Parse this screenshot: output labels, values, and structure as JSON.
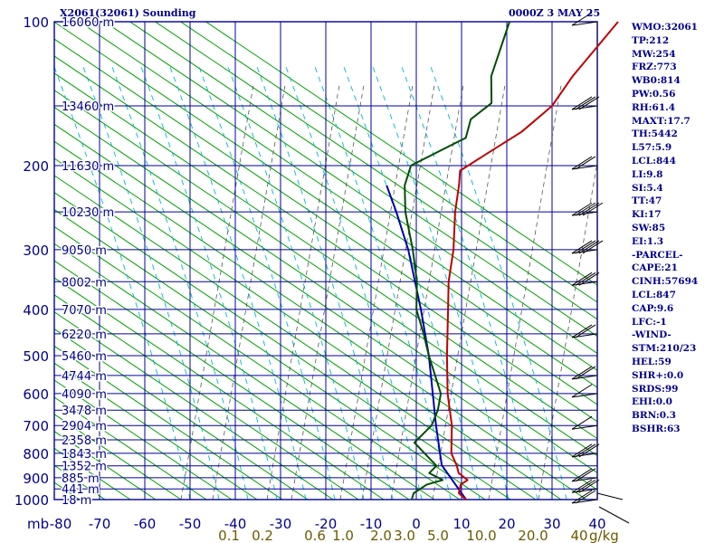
{
  "header": {
    "title": "X2061(32061) Sounding",
    "datetime": "0000Z  3 MAY 25"
  },
  "indices": [
    "WMO:32061",
    "TP:212",
    "MW:254",
    "FRZ:773",
    "WB0:814",
    "PW:0.56",
    "RH:61.4",
    "MAXT:17.7",
    "TH:5442",
    "L57:5.9",
    "LCL:844",
    "LI:9.8",
    "SI:5.4",
    "TT:47",
    "KI:17",
    "SW:85",
    "EI:1.3",
    "-PARCEL-",
    "CAPE:21",
    "CINH:57694",
    "LCL:847",
    "CAP:9.6",
    "LFC:-1",
    "-WIND-",
    "STM:210/23",
    "HEL:59",
    "SHR+:0.0",
    "SRDS:99",
    "EHI:0.0",
    "BRN:0.3",
    "BSHR:63"
  ],
  "colors": {
    "grid": "#0000a0",
    "temperature": "#c00000",
    "dewpoint": "#004d00",
    "parcel": "#0000b0",
    "dry_adiabat": "#00a000",
    "moist_adiabat": "#00b8c8",
    "mixing_ratio": "#555555",
    "text": "#00008b",
    "mixing_label": "#6b5a00",
    "wind": "#000000"
  },
  "chart_data": {
    "type": "skew-t",
    "xlabel": "mb",
    "pressure_ticks": [
      "100",
      "200",
      "300",
      "400",
      "500",
      "600",
      "700",
      "800",
      "900",
      "1000"
    ],
    "temperature_ticks": [
      "-80",
      "-70",
      "-60",
      "-50",
      "-40",
      "-30",
      "-20",
      "-10",
      "0",
      "10",
      "20",
      "30",
      "40"
    ],
    "xlim": [
      -80,
      40
    ],
    "ylim": [
      1000,
      100
    ],
    "height_labels": [
      {
        "p": 100,
        "text": "16060 m"
      },
      {
        "p": 150,
        "text": "13460 m"
      },
      {
        "p": 200,
        "text": "11630 m"
      },
      {
        "p": 250,
        "text": "10230 m"
      },
      {
        "p": 300,
        "text": "9050 m"
      },
      {
        "p": 350,
        "text": "8002 m"
      },
      {
        "p": 400,
        "text": "7070 m"
      },
      {
        "p": 450,
        "text": "6220 m"
      },
      {
        "p": 500,
        "text": "5460 m"
      },
      {
        "p": 550,
        "text": "4744 m"
      },
      {
        "p": 600,
        "text": "4090 m"
      },
      {
        "p": 650,
        "text": "3478 m"
      },
      {
        "p": 700,
        "text": "2904 m"
      },
      {
        "p": 750,
        "text": "2358 m"
      },
      {
        "p": 800,
        "text": "1843 m"
      },
      {
        "p": 850,
        "text": "1352 m"
      },
      {
        "p": 900,
        "text": "885 m"
      },
      {
        "p": 950,
        "text": "441 m"
      },
      {
        "p": 1000,
        "text": "18 m"
      }
    ],
    "mixing_ratio_labels": [
      {
        "w": 0.1,
        "text": "0.1"
      },
      {
        "w": 0.2,
        "text": "0.2"
      },
      {
        "w": 0.6,
        "text": "0.6"
      },
      {
        "w": 1.0,
        "text": "1.0"
      },
      {
        "w": 2.0,
        "text": "2.0"
      },
      {
        "w": 3.0,
        "text": "3.0"
      },
      {
        "w": 5.0,
        "text": "5.0"
      },
      {
        "w": 10.0,
        "text": "10.0"
      },
      {
        "w": 20.0,
        "text": "20.0"
      },
      {
        "w": 40.0,
        "text": "40"
      }
    ],
    "mixing_ratio_unit": "g/kg",
    "temperature": [
      {
        "p": 1000,
        "t": 11.0
      },
      {
        "p": 970,
        "t": 8.0
      },
      {
        "p": 930,
        "t": 6.5
      },
      {
        "p": 910,
        "t": 7.0
      },
      {
        "p": 880,
        "t": 3.5
      },
      {
        "p": 850,
        "t": 1.5
      },
      {
        "p": 800,
        "t": -2.5
      },
      {
        "p": 700,
        "t": -8.5
      },
      {
        "p": 600,
        "t": -16.5
      },
      {
        "p": 500,
        "t": -25.0
      },
      {
        "p": 400,
        "t": -35.0
      },
      {
        "p": 350,
        "t": -41.0
      },
      {
        "p": 300,
        "t": -47.0
      },
      {
        "p": 250,
        "t": -55.0
      },
      {
        "p": 220,
        "t": -60.0
      },
      {
        "p": 205,
        "t": -63.0
      },
      {
        "p": 190,
        "t": -61.0
      },
      {
        "p": 170,
        "t": -58.0
      },
      {
        "p": 160,
        "t": -57.5
      },
      {
        "p": 150,
        "t": -57.0
      },
      {
        "p": 130,
        "t": -59.0
      },
      {
        "p": 100,
        "t": -61.0
      }
    ],
    "dewpoint": [
      {
        "p": 1000,
        "t": -1.0
      },
      {
        "p": 970,
        "t": -2.0
      },
      {
        "p": 930,
        "t": -1.0
      },
      {
        "p": 910,
        "t": 1.5
      },
      {
        "p": 880,
        "t": -3.0
      },
      {
        "p": 850,
        "t": -3.0
      },
      {
        "p": 760,
        "t": -13.0
      },
      {
        "p": 700,
        "t": -13.0
      },
      {
        "p": 650,
        "t": -15.0
      },
      {
        "p": 600,
        "t": -18.0
      },
      {
        "p": 500,
        "t": -29.0
      },
      {
        "p": 450,
        "t": -35.0
      },
      {
        "p": 400,
        "t": -42.0
      },
      {
        "p": 350,
        "t": -48.0
      },
      {
        "p": 300,
        "t": -56.0
      },
      {
        "p": 250,
        "t": -66.0
      },
      {
        "p": 220,
        "t": -72.0
      },
      {
        "p": 200,
        "t": -75.0
      },
      {
        "p": 175,
        "t": -69.0
      },
      {
        "p": 160,
        "t": -72.0
      },
      {
        "p": 148,
        "t": -71.0
      },
      {
        "p": 130,
        "t": -77.0
      },
      {
        "p": 100,
        "t": -85.0
      }
    ],
    "parcel": [
      {
        "p": 1000,
        "t": 11.0
      },
      {
        "p": 847,
        "t": -2.0
      },
      {
        "p": 700,
        "t": -12.0
      },
      {
        "p": 500,
        "t": -29.0
      },
      {
        "p": 400,
        "t": -41.0
      },
      {
        "p": 300,
        "t": -57.0
      },
      {
        "p": 250,
        "t": -68.0
      },
      {
        "p": 220,
        "t": -76.0
      }
    ],
    "wind_barbs": [
      {
        "p": 100,
        "barbs": 1
      },
      {
        "p": 150,
        "barbs": 3
      },
      {
        "p": 200,
        "barbs": 2
      },
      {
        "p": 250,
        "barbs": 4
      },
      {
        "p": 300,
        "barbs": 4
      },
      {
        "p": 350,
        "barbs": 3
      },
      {
        "p": 450,
        "barbs": 2
      },
      {
        "p": 550,
        "barbs": 2
      },
      {
        "p": 600,
        "barbs": 1
      },
      {
        "p": 700,
        "barbs": 1
      },
      {
        "p": 800,
        "barbs": 3
      },
      {
        "p": 900,
        "barbs": 2
      },
      {
        "p": 950,
        "barbs": 3
      },
      {
        "p": 1000,
        "barbs": 2
      }
    ]
  }
}
